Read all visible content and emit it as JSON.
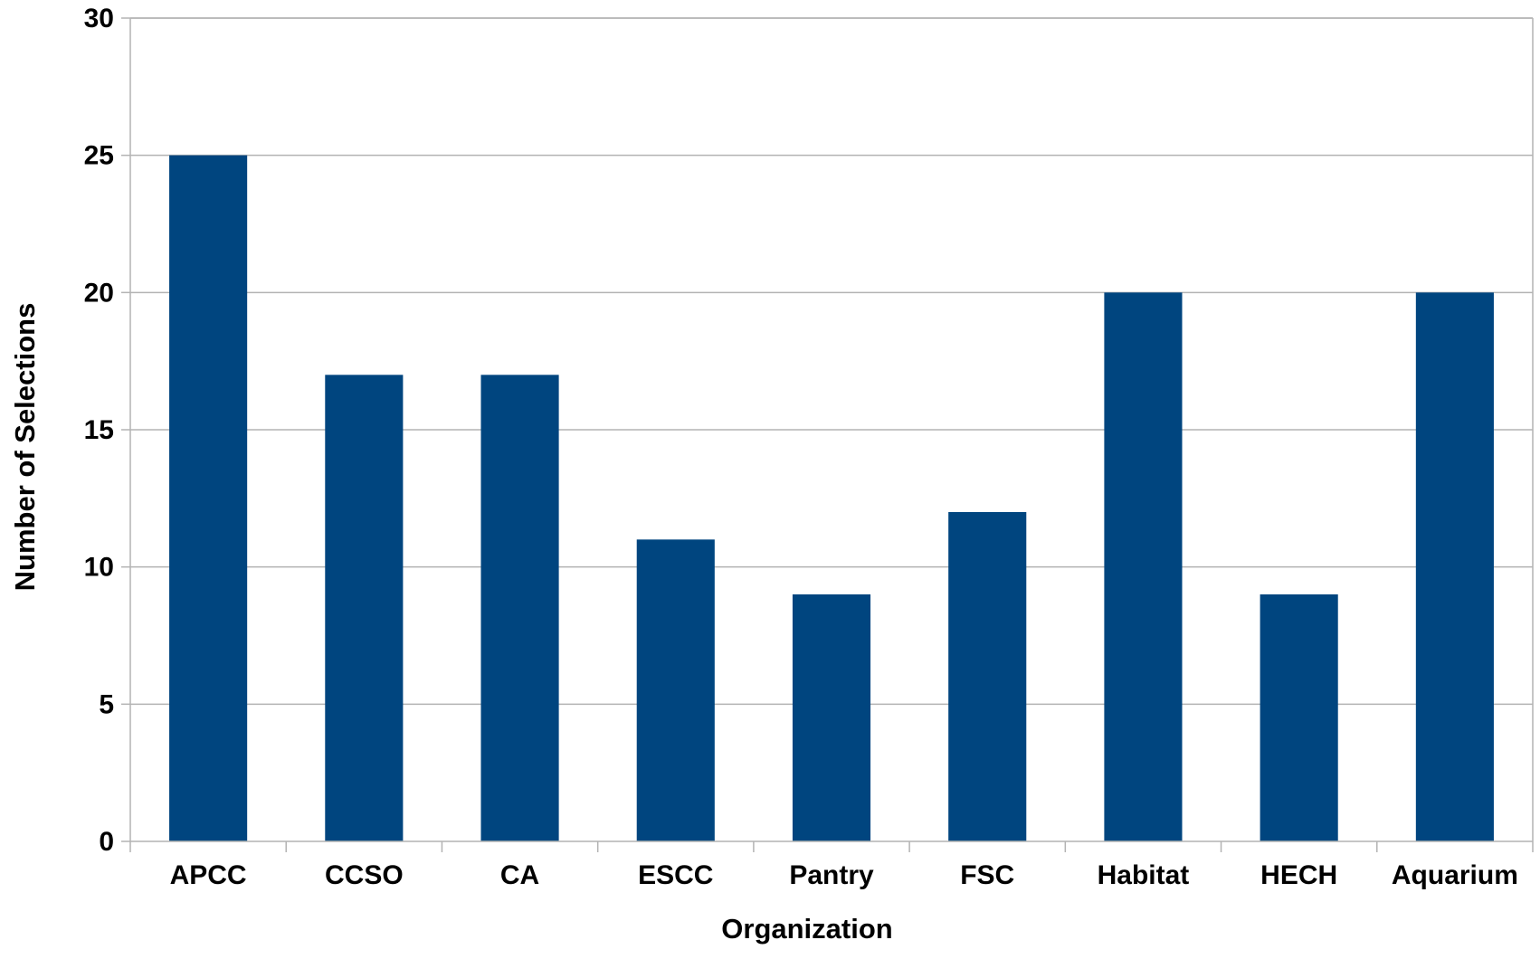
{
  "chart_data": {
    "type": "bar",
    "title": "",
    "xlabel": "Organization",
    "ylabel": "Number of Selections",
    "categories": [
      "APCC",
      "CCSO",
      "CA",
      "ESCC",
      "Pantry",
      "FSC",
      "Habitat",
      "HECH",
      "Aquarium"
    ],
    "values": [
      25,
      17,
      17,
      11,
      9,
      12,
      20,
      9,
      20
    ],
    "ylim": [
      0,
      30
    ],
    "yticks": [
      0,
      5,
      10,
      15,
      20,
      25,
      30
    ],
    "ytick_labels": [
      "0",
      "5",
      "10",
      "15",
      "20",
      "25",
      "30"
    ],
    "grid": true,
    "legend": "none",
    "bar_color": "#00457f",
    "grid_color": "#b3b3b3",
    "axis_color": "#b3b3b3"
  }
}
